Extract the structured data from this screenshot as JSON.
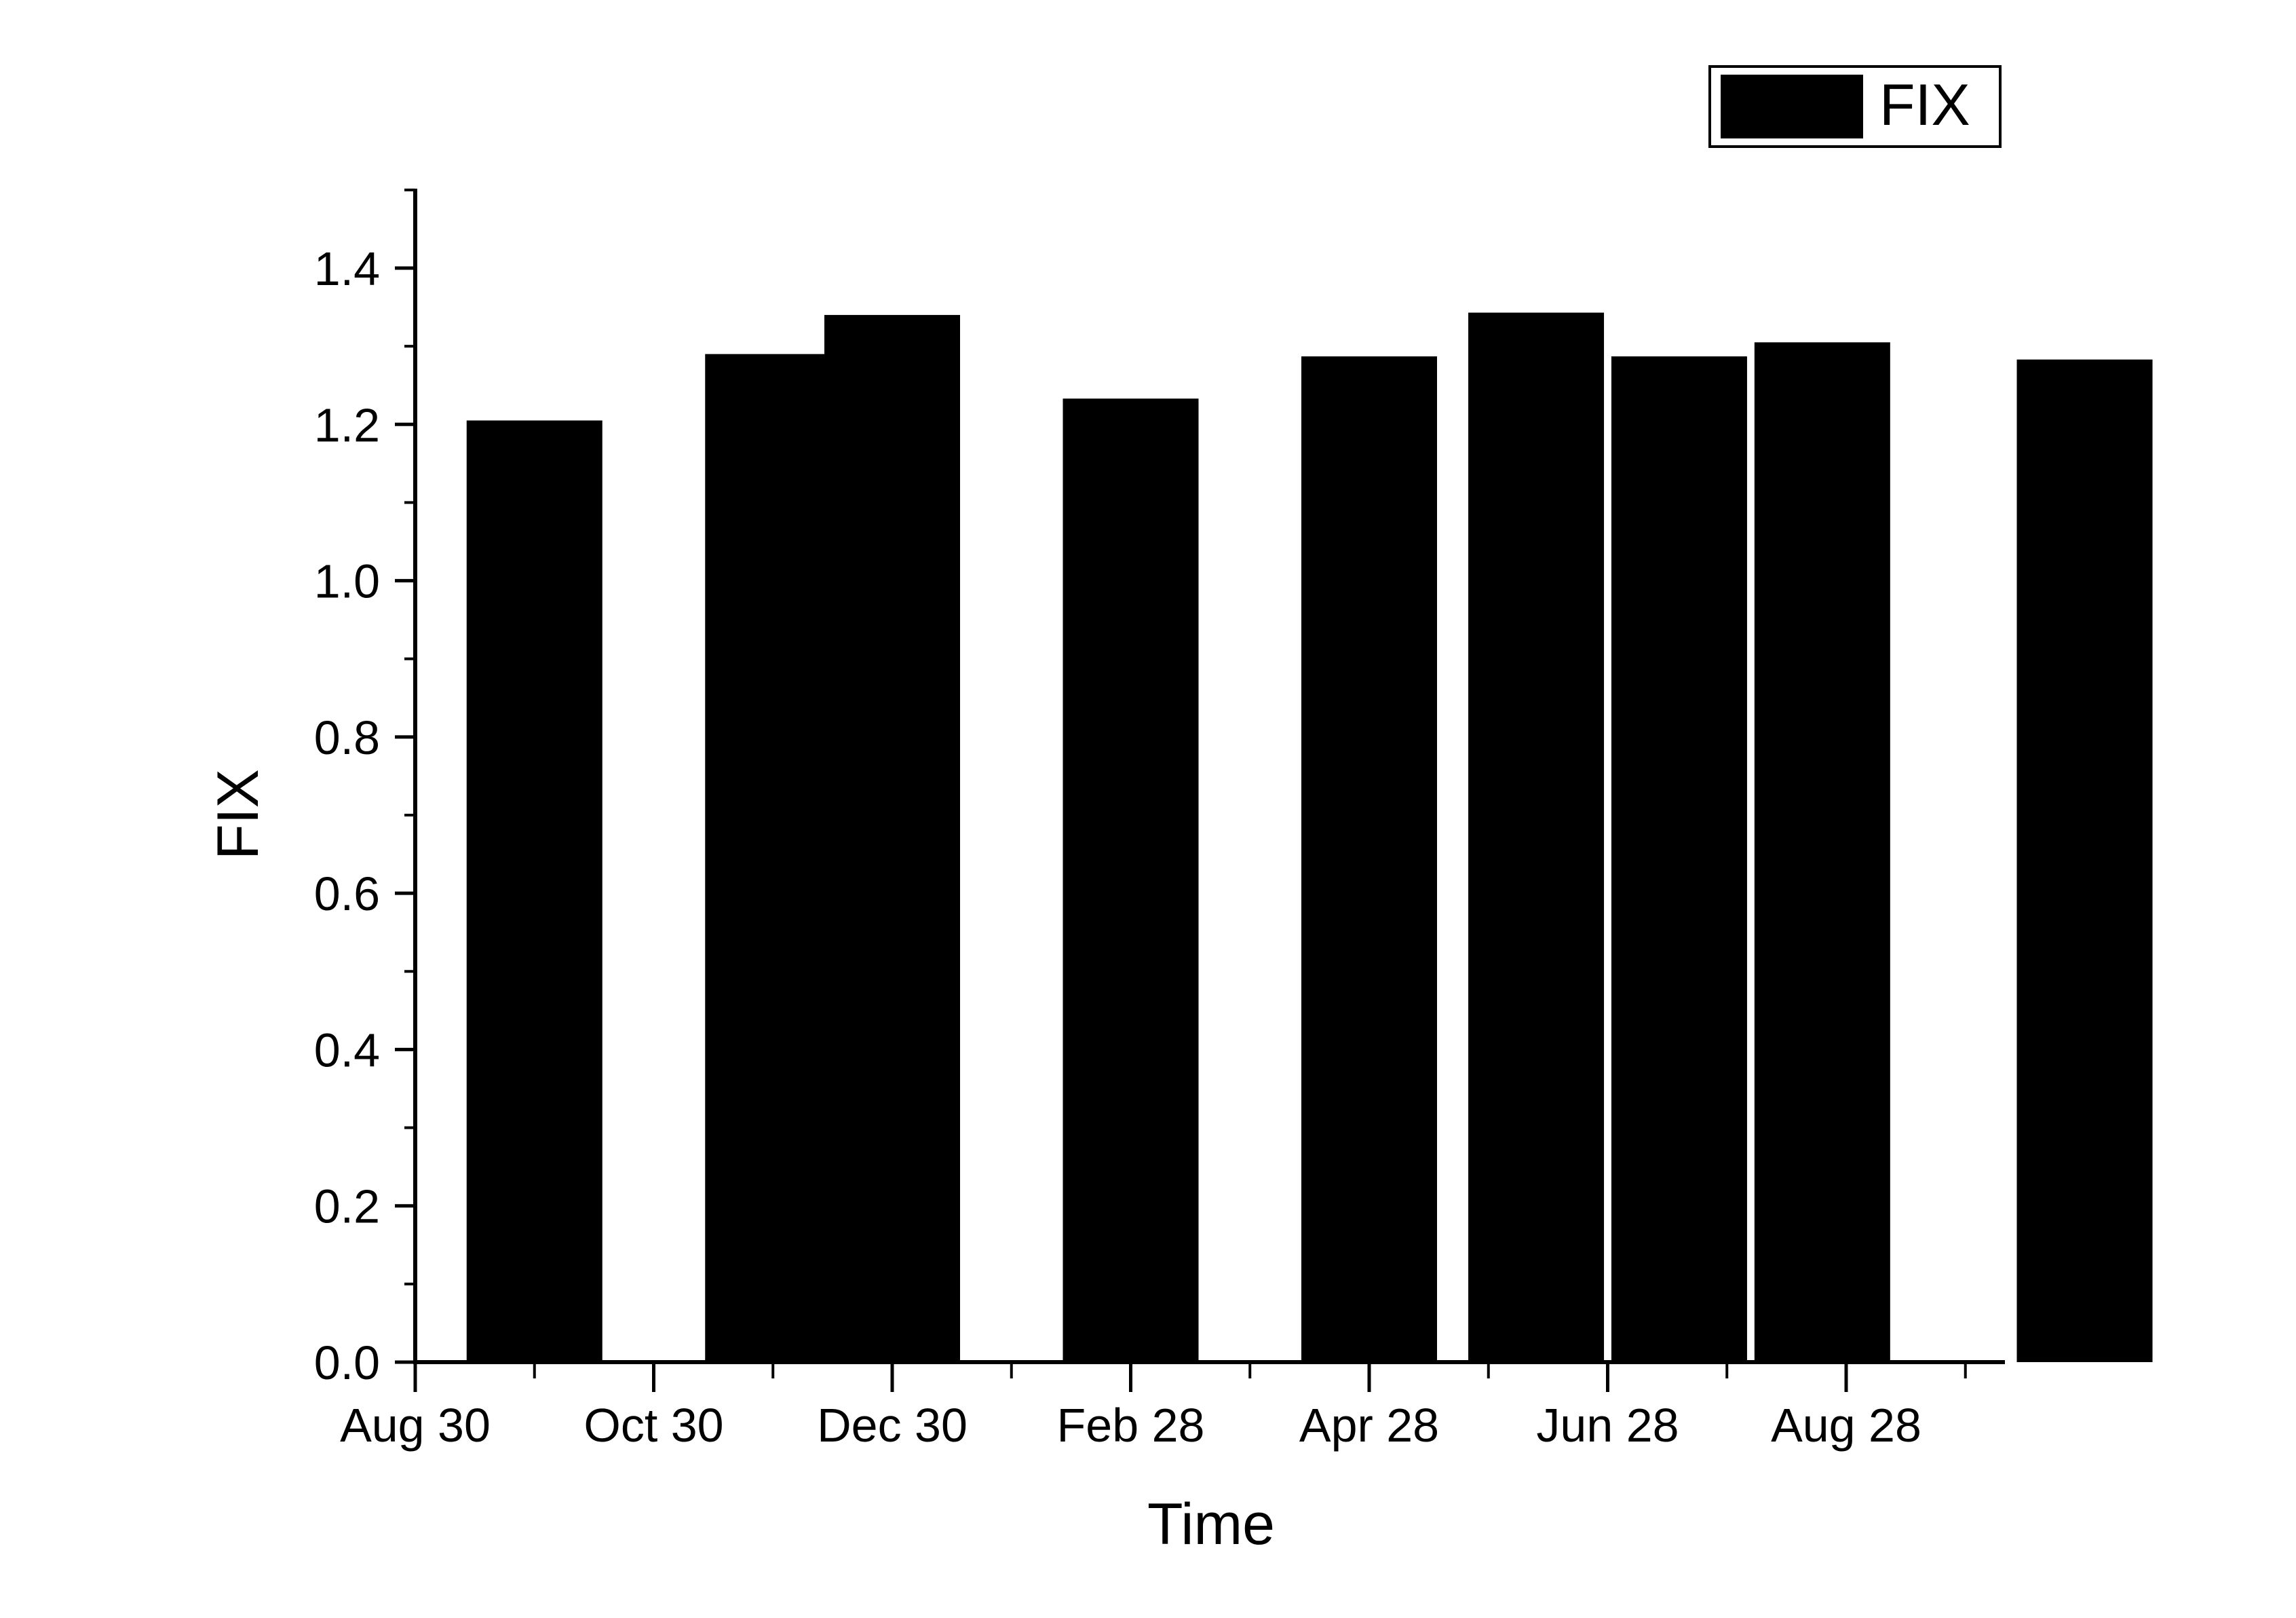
{
  "chart_data": {
    "type": "bar",
    "xlabel": "Time",
    "ylabel": "FIX",
    "ylim": [
      0,
      1.5
    ],
    "y_major_ticks": [
      0.0,
      0.2,
      0.4,
      0.6,
      0.8,
      1.0,
      1.2,
      1.4
    ],
    "x_tick_labels": [
      "Aug 30",
      "Oct 30",
      "Dec 30",
      "Feb 28",
      "Apr 28",
      "Jun 28",
      "Aug 28"
    ],
    "grid": false,
    "legend": {
      "position": "top-right",
      "entries": [
        "FIX"
      ]
    },
    "bar_color": "#000000",
    "series": [
      {
        "name": "FIX",
        "values": [
          {
            "x_tick_offset": 0.5,
            "y": 1.205
          },
          {
            "x_tick_offset": 1.5,
            "y": 1.29
          },
          {
            "x_tick_offset": 2.0,
            "y": 1.34
          },
          {
            "x_tick_offset": 3.0,
            "y": 1.233
          },
          {
            "x_tick_offset": 4.0,
            "y": 1.287
          },
          {
            "x_tick_offset": 4.7,
            "y": 1.343
          },
          {
            "x_tick_offset": 5.3,
            "y": 1.287
          },
          {
            "x_tick_offset": 5.9,
            "y": 1.305
          },
          {
            "x_tick_offset": 7.0,
            "y": 1.283
          }
        ]
      }
    ]
  }
}
